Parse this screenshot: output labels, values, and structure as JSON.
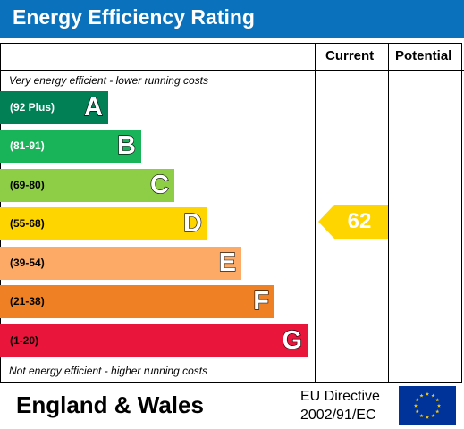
{
  "header": {
    "title": "Energy Efficiency Rating"
  },
  "columns": {
    "current_label": "Current",
    "potential_label": "Potential"
  },
  "captions": {
    "top": "Very energy efficient - lower running costs",
    "bottom": "Not energy efficient - higher running costs"
  },
  "bands": [
    {
      "range": "(92 Plus)",
      "letter": "A",
      "color": "#008054",
      "range_color": "#ffffff"
    },
    {
      "range": "(81-91)",
      "letter": "B",
      "color": "#19b459",
      "range_color": "#ffffff"
    },
    {
      "range": "(69-80)",
      "letter": "C",
      "color": "#8dce46",
      "range_color": "#000000"
    },
    {
      "range": "(55-68)",
      "letter": "D",
      "color": "#ffd500",
      "range_color": "#000000"
    },
    {
      "range": "(39-54)",
      "letter": "E",
      "color": "#fcaa65",
      "range_color": "#000000"
    },
    {
      "range": "(21-38)",
      "letter": "F",
      "color": "#ef8023",
      "range_color": "#000000"
    },
    {
      "range": "(1-20)",
      "letter": "G",
      "color": "#e9153b",
      "range_color": "#000000"
    }
  ],
  "current": {
    "value": "62",
    "band": "D",
    "color": "#ffd500"
  },
  "footer": {
    "region": "England & Wales",
    "directive_line1": "EU Directive",
    "directive_line2": "2002/91/EC"
  },
  "eu_flag": {
    "background": "#003399",
    "star_color": "#ffcc00"
  }
}
